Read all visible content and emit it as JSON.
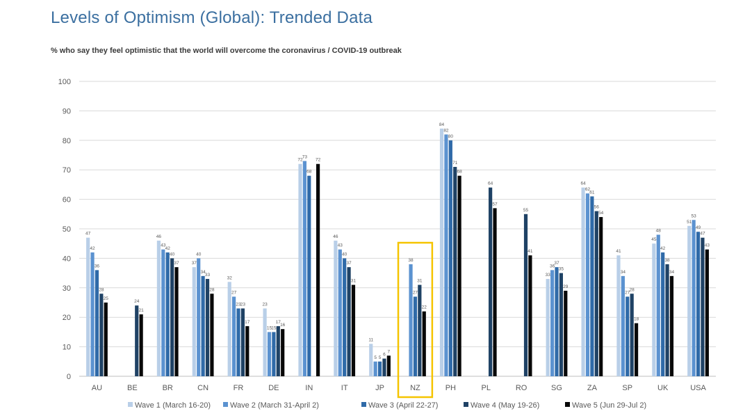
{
  "chart_data": {
    "type": "bar",
    "title": "Levels of Optimism (Global): Trended Data",
    "subtitle": "% who say they feel optimistic that the world will overcome the coronavirus / COVID-19 outbreak",
    "categories": [
      "AU",
      "BE",
      "BR",
      "CN",
      "FR",
      "DE",
      "IN",
      "IT",
      "JP",
      "NZ",
      "PH",
      "PL",
      "RO",
      "SG",
      "ZA",
      "SP",
      "UK",
      "USA"
    ],
    "ylim": [
      0,
      100
    ],
    "yticks": [
      0,
      10,
      20,
      30,
      40,
      50,
      60,
      70,
      80,
      90,
      100
    ],
    "grid": true,
    "legend_position": "bottom",
    "highlight_category": "NZ",
    "highlight_color": "#f5c400",
    "series": [
      {
        "name": "Wave 1 (March 16-20)",
        "color": "#b9cfe8",
        "values": [
          47,
          null,
          46,
          37,
          32,
          23,
          72,
          46,
          11,
          null,
          84,
          null,
          null,
          33,
          64,
          41,
          45,
          51
        ]
      },
      {
        "name": "Wave 2 (March 31-April 2)",
        "color": "#5b92d0",
        "values": [
          42,
          null,
          43,
          40,
          27,
          15,
          73,
          43,
          5,
          38,
          82,
          null,
          null,
          36,
          62,
          34,
          48,
          53
        ]
      },
      {
        "name": "Wave 3 (April 22-27)",
        "color": "#2f6aa8",
        "values": [
          36,
          null,
          42,
          34,
          23,
          15,
          68,
          40,
          5,
          27,
          80,
          null,
          null,
          37,
          61,
          27,
          42,
          49
        ]
      },
      {
        "name": "Wave 4 (May 19-26)",
        "color": "#1f4265",
        "values": [
          28,
          24,
          40,
          33,
          23,
          17,
          null,
          37,
          6,
          31,
          71,
          64,
          55,
          35,
          56,
          28,
          38,
          47
        ]
      },
      {
        "name": "Wave 5 (Jun 29-Jul 2)",
        "color": "#080808",
        "values": [
          25,
          21,
          37,
          28,
          17,
          16,
          72,
          31,
          7,
          22,
          68,
          57,
          41,
          29,
          54,
          18,
          34,
          43
        ]
      }
    ]
  }
}
